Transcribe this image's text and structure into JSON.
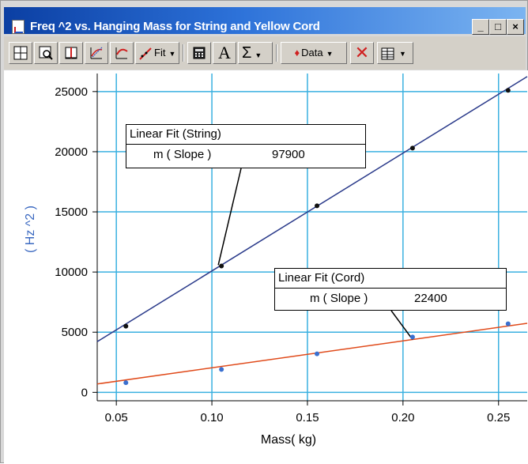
{
  "window": {
    "title": "Freq ^2 vs. Hanging Mass for String and Yellow Cord",
    "controls": {
      "minimize": "_",
      "maximize": "□",
      "close": "×"
    }
  },
  "toolbar": {
    "buttons": [
      {
        "name": "graph-options-button",
        "icon": "graph-options-icon",
        "label": ""
      },
      {
        "name": "zoom-button",
        "icon": "magnifier-icon",
        "label": ""
      },
      {
        "name": "examine-button",
        "icon": "examine-icon",
        "label": ""
      },
      {
        "name": "tangent-button",
        "icon": "tangent-icon",
        "label": ""
      },
      {
        "name": "integral-button",
        "icon": "curve-icon",
        "label": ""
      },
      {
        "name": "linear-fit-button",
        "icon": "linear-fit-icon",
        "label": "Fit"
      },
      {
        "name": "calculator-button",
        "icon": "calculator-icon",
        "label": ""
      },
      {
        "name": "text-button",
        "icon": "text-a-icon",
        "label": "A"
      },
      {
        "name": "statistics-button",
        "icon": "sigma-icon",
        "label": "Σ"
      },
      {
        "name": "data-button",
        "icon": "data-drop-icon",
        "label": "Data"
      },
      {
        "name": "remove-button",
        "icon": "red-x-icon",
        "label": ""
      },
      {
        "name": "table-button",
        "icon": "table-icon",
        "label": ""
      }
    ]
  },
  "callouts": [
    {
      "title": "Linear Fit (String)",
      "param": "m ( Slope )",
      "value": "97900"
    },
    {
      "title": "Linear Fit (Cord)",
      "param": "m ( Slope )",
      "value": "22400"
    }
  ],
  "colors": {
    "grid": "#3ab0e0",
    "string_line": "#2a3a8a",
    "cord_line": "#e04a1a",
    "string_points": "#111111",
    "cord_points": "#3a70d0",
    "ylabel": "#3a68c0"
  },
  "chart_data": {
    "type": "scatter",
    "title": "",
    "xlabel": "Mass( kg)",
    "ylabel": "( Hz ^2 )",
    "xlim": [
      0.04,
      0.265
    ],
    "ylim": [
      -700,
      26500
    ],
    "x_ticks": [
      "0.05",
      "0.10",
      "0.15",
      "0.20",
      "0.25"
    ],
    "y_ticks": [
      "0",
      "5000",
      "10000",
      "15000",
      "20000",
      "25000"
    ],
    "grid": true,
    "series": [
      {
        "name": "String",
        "x": [
          0.055,
          0.105,
          0.155,
          0.205,
          0.255
        ],
        "y": [
          5500,
          10500,
          15500,
          20300,
          25100
        ],
        "fit": {
          "slope": 97900,
          "intercept": 300
        }
      },
      {
        "name": "Cord",
        "x": [
          0.055,
          0.105,
          0.155,
          0.205,
          0.255
        ],
        "y": [
          800,
          1900,
          3200,
          4600,
          5700
        ],
        "fit": {
          "slope": 22400,
          "intercept": -200
        }
      }
    ]
  }
}
